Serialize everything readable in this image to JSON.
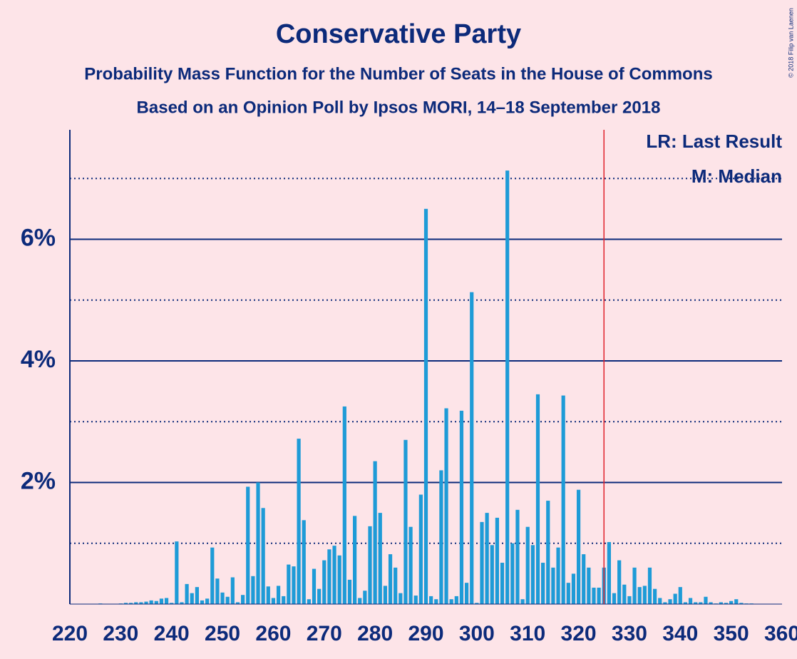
{
  "chart_data": {
    "type": "bar",
    "title": "Conservative Party",
    "subtitle": "Probability Mass Function for the Number of Seats in the House of Commons",
    "subtitle2": "Based on an Opinion Poll by Ipsos MORI, 14–18 September 2018",
    "copyright": "© 2018 Filip van Laenen",
    "legend_lr": "LR: Last Result",
    "legend_m": "M: Median",
    "color": "#1e9bd7",
    "last_result_line": 325,
    "x": [
      220,
      221,
      222,
      223,
      224,
      225,
      226,
      227,
      228,
      229,
      230,
      231,
      232,
      233,
      234,
      235,
      236,
      237,
      238,
      239,
      240,
      241,
      242,
      243,
      244,
      245,
      246,
      247,
      248,
      249,
      250,
      251,
      252,
      253,
      254,
      255,
      256,
      257,
      258,
      259,
      260,
      261,
      262,
      263,
      264,
      265,
      266,
      267,
      268,
      269,
      270,
      271,
      272,
      273,
      274,
      275,
      276,
      277,
      278,
      279,
      280,
      281,
      282,
      283,
      284,
      285,
      286,
      287,
      288,
      289,
      290,
      291,
      292,
      293,
      294,
      295,
      296,
      297,
      298,
      299,
      300,
      301,
      302,
      303,
      304,
      305,
      306,
      307,
      308,
      309,
      310,
      311,
      312,
      313,
      314,
      315,
      316,
      317,
      318,
      319,
      320,
      321,
      322,
      323,
      324,
      325,
      326,
      327,
      328,
      329,
      330,
      331,
      332,
      333,
      334,
      335,
      336,
      337,
      338,
      339,
      340,
      341,
      342,
      343,
      344,
      345,
      346,
      347,
      348,
      349,
      350,
      351,
      352,
      353,
      354,
      355,
      356,
      357,
      358,
      359,
      360
    ],
    "values": [
      0,
      0,
      0,
      0,
      0,
      0,
      0.01,
      0,
      0,
      0,
      0.01,
      0.02,
      0.02,
      0.03,
      0.03,
      0.04,
      0.06,
      0.05,
      0.09,
      0.1,
      0.02,
      1.03,
      0.03,
      0.33,
      0.18,
      0.28,
      0.06,
      0.09,
      0.93,
      0.42,
      0.19,
      0.12,
      0.44,
      0.03,
      0.15,
      1.93,
      0.46,
      2.0,
      1.58,
      0.29,
      0.1,
      0.3,
      0.13,
      0.65,
      0.62,
      2.72,
      1.38,
      0.08,
      0.58,
      0.25,
      0.72,
      0.9,
      0.96,
      0.8,
      3.25,
      0.4,
      1.45,
      0.1,
      0.22,
      1.28,
      2.35,
      1.5,
      0.3,
      0.82,
      0.6,
      0.18,
      2.7,
      1.27,
      0.14,
      1.8,
      6.5,
      0.13,
      0.08,
      2.2,
      3.22,
      0.08,
      0.13,
      3.18,
      0.35,
      5.13,
      0.02,
      1.35,
      1.5,
      0.97,
      1.42,
      0.68,
      7.13,
      1.0,
      1.55,
      0.08,
      1.27,
      0.97,
      3.45,
      0.68,
      1.7,
      0.6,
      0.93,
      3.43,
      0.35,
      0.5,
      1.88,
      0.82,
      0.6,
      0.27,
      0.27,
      0.6,
      1.02,
      0.18,
      0.72,
      0.32,
      0.13,
      0.6,
      0.28,
      0.3,
      0.6,
      0.25,
      0.1,
      0.03,
      0.08,
      0.17,
      0.28,
      0.03,
      0.1,
      0.03,
      0.03,
      0.12,
      0.03,
      0.01,
      0.03,
      0.02,
      0.05,
      0.08,
      0.02,
      0.01,
      0.01,
      0,
      0,
      0,
      0,
      0,
      0
    ],
    "xlim": [
      220,
      360
    ],
    "xticks": [
      220,
      230,
      240,
      250,
      260,
      270,
      280,
      290,
      300,
      310,
      320,
      330,
      340,
      350,
      360
    ],
    "ylim": [
      0,
      7.8
    ],
    "yticks": [
      {
        "value": 2,
        "label": "2%"
      },
      {
        "value": 4,
        "label": "4%"
      },
      {
        "value": 6,
        "label": "6%"
      }
    ],
    "minor_grid": [
      1,
      3,
      5,
      7
    ]
  }
}
